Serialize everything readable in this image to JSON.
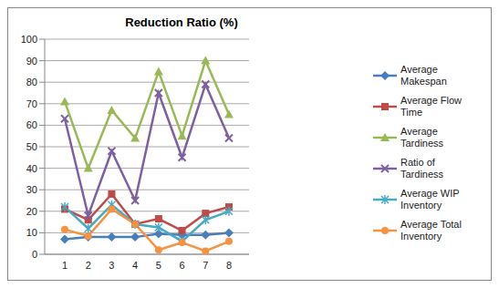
{
  "chart_data": {
    "type": "line",
    "title": "Reduction Ratio (%)",
    "categories": [
      "1",
      "2",
      "3",
      "4",
      "5",
      "6",
      "7",
      "8"
    ],
    "series": [
      {
        "name": "Average Makespan",
        "color": "#4a7ebb",
        "marker": "diamond",
        "values": [
          7,
          8,
          8,
          8,
          9.5,
          9,
          9,
          10
        ]
      },
      {
        "name": "Average Flow Time",
        "color": "#be4b48",
        "marker": "square",
        "values": [
          21,
          16,
          28,
          14,
          16.5,
          11,
          19,
          22
        ]
      },
      {
        "name": "Average Tardiness",
        "color": "#98b954",
        "marker": "triangle",
        "values": [
          71,
          40,
          67,
          54,
          85,
          55,
          90,
          65
        ]
      },
      {
        "name": "Ratio of Tardiness",
        "color": "#7d60a0",
        "marker": "x",
        "values": [
          63,
          18,
          48,
          25,
          75,
          45,
          79,
          54
        ]
      },
      {
        "name": "Average WIP Inventory",
        "color": "#46aac5",
        "marker": "star",
        "values": [
          22,
          12,
          23,
          14,
          12.5,
          6,
          16,
          20
        ]
      },
      {
        "name": "Average Total Inventory",
        "color": "#f69240",
        "marker": "circle",
        "values": [
          11.5,
          8.5,
          21,
          14,
          2,
          5.5,
          1.5,
          6
        ]
      }
    ],
    "ylim": [
      0,
      100
    ],
    "yticks": [
      0,
      10,
      20,
      30,
      40,
      50,
      60,
      70,
      80,
      90,
      100
    ],
    "grid": true,
    "legend": "right"
  }
}
